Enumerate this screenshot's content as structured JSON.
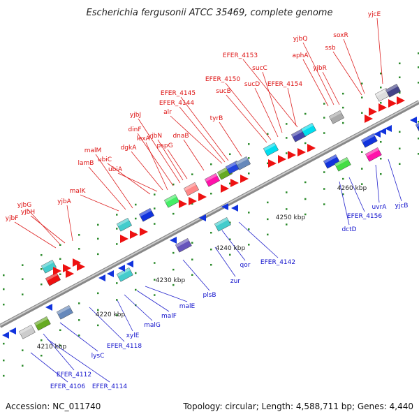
{
  "title": "Escherichia fergusonii ATCC 35469, complete genome",
  "accession_label": "Accession: NC_011740",
  "summary_label": "Topology: circular; Length: 4,588,711 bp; Genes: 4,440",
  "colors": {
    "top_labels": "#dd1111",
    "bottom_labels": "#1111cc",
    "backbone": "#999999"
  },
  "kbp_labels": [
    "4210 kbp",
    "4220 kbp",
    "4230 kbp",
    "4240 kbp",
    "4250 kbp",
    "4260 kbp"
  ],
  "top_genes": [
    "yjbF",
    "yjbG",
    "yjbH",
    "yjbA",
    "malK",
    "lamB",
    "malM",
    "ubiC",
    "ubiA",
    "dgkA",
    "lexA",
    "dinF",
    "yjbJ",
    "yjbN",
    "pspG",
    "dnaB",
    "alr",
    "EFER_4144",
    "EFER_4145",
    "tyrB",
    "sucB",
    "EFER_4150",
    "sucD",
    "sucC",
    "EFER_4153",
    "EFER_4154",
    "aphA",
    "yjbQ",
    "yjbR",
    "ssb",
    "soxR",
    "yjcE"
  ],
  "bottom_genes": [
    "EFER_4106",
    "EFER_4114",
    "EFER_4112",
    "lysC",
    "EFER_4118",
    "xylE",
    "malG",
    "malF",
    "malE",
    "plsB",
    "zur",
    "qor",
    "EFER_4142",
    "dctD",
    "EFER_4156",
    "uvrA",
    "yjcB"
  ]
}
